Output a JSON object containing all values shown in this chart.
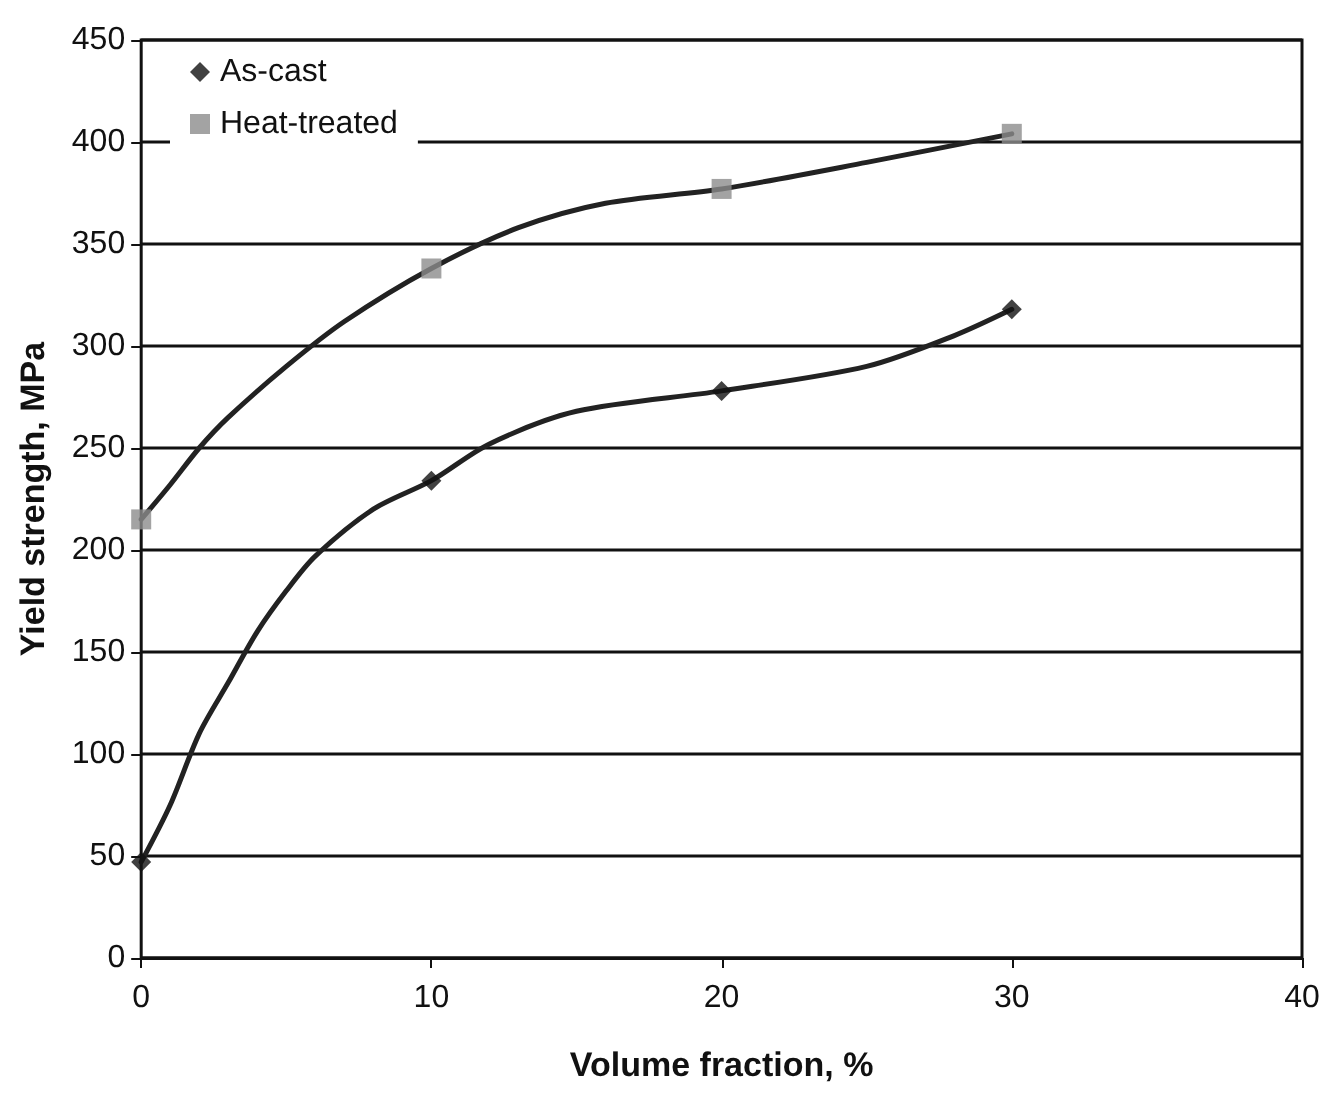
{
  "chart_data": {
    "type": "scatter",
    "xlabel": "Volume fraction, %",
    "ylabel": "Yield strength, MPa",
    "x": [
      0,
      10,
      20,
      30
    ],
    "series": [
      {
        "name": "As-cast",
        "color": "#111111",
        "marker": "diamond",
        "values": [
          47,
          234,
          278,
          318
        ]
      },
      {
        "name": "Heat-treated",
        "color": "#8c8c8c",
        "marker": "square",
        "values": [
          215,
          338,
          377,
          404
        ]
      },
      {
        "type": "line",
        "color": "#222222",
        "marker": "none",
        "x": [
          0,
          1,
          2,
          3,
          4,
          5,
          6,
          8,
          10,
          12,
          15,
          20,
          25,
          28,
          30
        ],
        "values": [
          47,
          75,
          110,
          135,
          160,
          180,
          197,
          220,
          234,
          252,
          268,
          278,
          290,
          305,
          318
        ]
      },
      {
        "type": "line",
        "color": "#222222",
        "marker": "none",
        "x": [
          0,
          1,
          2,
          3,
          5,
          7,
          10,
          13,
          16,
          20,
          25,
          30
        ],
        "values": [
          215,
          232,
          250,
          265,
          290,
          312,
          338,
          358,
          370,
          377,
          390,
          404
        ]
      }
    ],
    "xlim": [
      0,
      40
    ],
    "xticks": [
      0,
      10,
      20,
      30,
      40
    ],
    "ylim": [
      0,
      450
    ],
    "yticks": [
      0,
      50,
      100,
      150,
      200,
      250,
      300,
      350,
      400,
      450
    ],
    "grid": "y",
    "legend": "top left"
  }
}
